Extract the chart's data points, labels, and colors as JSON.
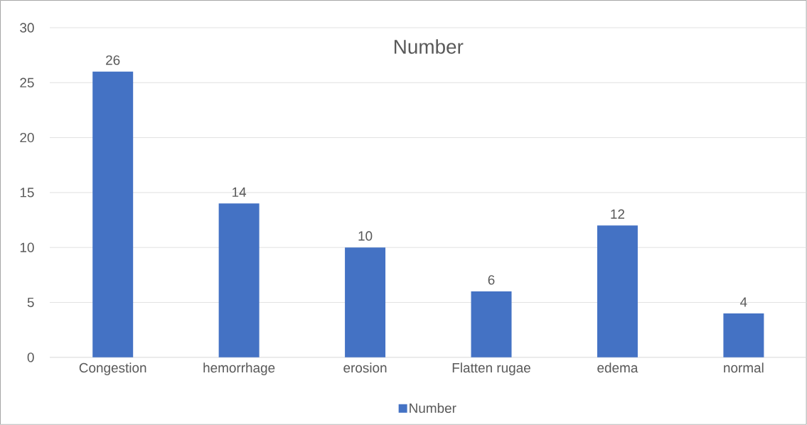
{
  "chart_data": {
    "type": "bar",
    "title": "Number",
    "categories": [
      "Congestion",
      "hemorrhage",
      "erosion",
      "Flatten rugae",
      "edema",
      "normal"
    ],
    "series": [
      {
        "name": "Number",
        "color": "#4472c4",
        "values": [
          26,
          14,
          10,
          6,
          12,
          4
        ]
      }
    ],
    "ylim": [
      0,
      30
    ],
    "yticks": [
      0,
      5,
      10,
      15,
      20,
      25,
      30
    ],
    "grid": "y",
    "legend": "bottom",
    "data_labels": true
  }
}
